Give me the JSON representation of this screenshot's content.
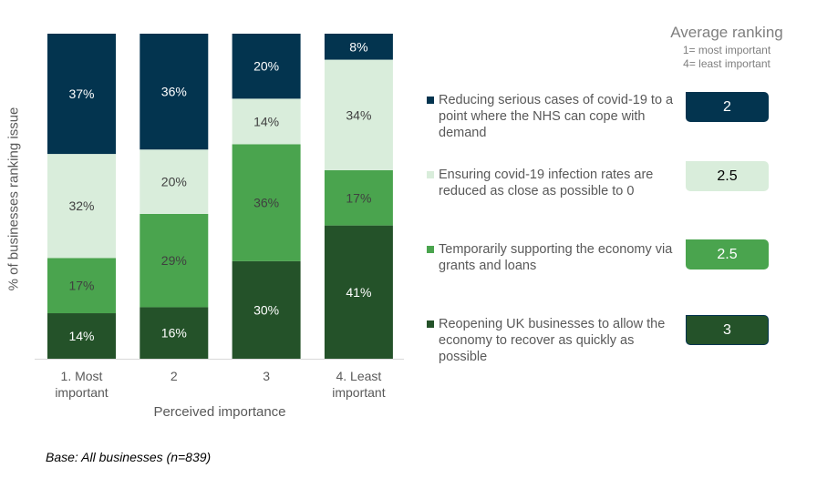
{
  "chart_data": {
    "type": "bar",
    "stacked": true,
    "title": "",
    "xlabel": "Perceived importance",
    "ylabel": "% of businesses ranking issue",
    "ylim": [
      0,
      100
    ],
    "grid": false,
    "categories": [
      "1. Most important",
      "2",
      "3",
      "4. Least important"
    ],
    "category_lines": [
      [
        "1. Most",
        "important"
      ],
      [
        "2"
      ],
      [
        "3"
      ],
      [
        "4. Least",
        "important"
      ]
    ],
    "series": [
      {
        "name": "Reopening UK businesses to allow the economy to recover as quickly as possible",
        "color": "#245229",
        "label_color": "#ffffff",
        "values": [
          14,
          16,
          30,
          41
        ]
      },
      {
        "name": "Temporarily supporting the economy via grants and loans",
        "color": "#4aa44e",
        "label_color": "#404040",
        "values": [
          17,
          29,
          36,
          17
        ]
      },
      {
        "name": "Ensuring covid-19 infection rates are reduced as close as possible to 0",
        "color": "#d9eddb",
        "label_color": "#404040",
        "values": [
          32,
          20,
          14,
          34
        ]
      },
      {
        "name": "Reducing serious cases of covid-19 to a point where the NHS can cope with demand",
        "color": "#03344f",
        "label_color": "#ffffff",
        "values": [
          37,
          36,
          20,
          8
        ]
      }
    ],
    "value_suffix": "%",
    "legend_placement": "right"
  },
  "legend": [
    {
      "label": "Reducing serious cases of covid-19 to a point where the NHS can cope with demand",
      "color": "#03344f"
    },
    {
      "label": "Ensuring covid-19 infection rates are reduced as close as possible to 0",
      "color": "#d9eddb"
    },
    {
      "label": "Temporarily supporting the economy via grants and loans",
      "color": "#4aa44e"
    },
    {
      "label": "Reopening UK businesses to allow the economy to recover as quickly as possible",
      "color": "#245229"
    }
  ],
  "average_ranking": {
    "title": "Average ranking",
    "note_1": "1= most important",
    "note_2": "4= least important",
    "values": [
      {
        "value": "2",
        "color": "#03344f",
        "text_color": "#ffffff"
      },
      {
        "value": "2.5",
        "color": "#d9eddb",
        "text_color": "#000000"
      },
      {
        "value": "2.5",
        "color": "#4aa44e",
        "text_color": "#ffffff"
      },
      {
        "value": "3",
        "color": "#245229",
        "text_color": "#ffffff"
      }
    ]
  },
  "base_note": "Base: All businesses (n=839)"
}
